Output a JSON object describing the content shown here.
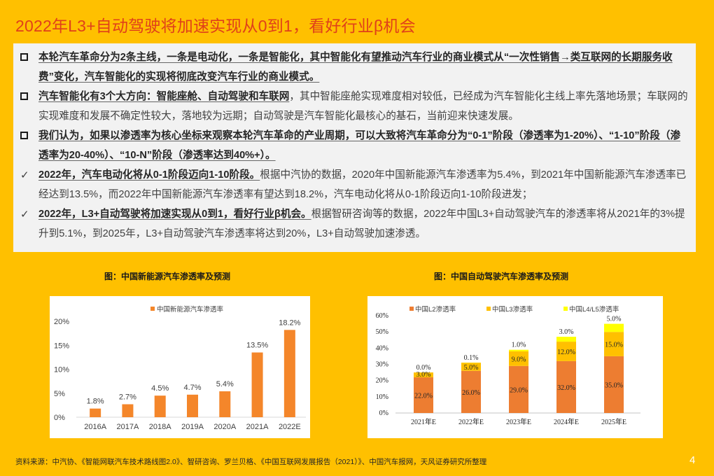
{
  "page": {
    "title": "2022年L3+自动驾驶将加速实现从0到1，看好行业β机会",
    "page_number": "4",
    "footer_source": "资料来源：中汽协、《智能网联汽车技术路线图2.0》、智研咨询、罗兰贝格、《中国互联网发展报告（2021）》、中国汽车报网，天风证券研究所整理"
  },
  "colors": {
    "background": "#FFC000",
    "title": "#E0401A",
    "textbox_bg": "#F2F2F2",
    "bar_orange": "#F4862A",
    "l2": "#ED7D31",
    "l3": "#FFC000",
    "l45": "#FFFF00"
  },
  "bullets": [
    {
      "type": "square",
      "bold": "本轮汽车革命分为2条主线，一条是电动化，一条是智能化，其中智能化有望推动汽车行业的商业模式从“一次性销售→类互联网的长期服务收费”变化，汽车智能化的实现将彻底改变汽车行业的商业模式。",
      "normal": ""
    },
    {
      "type": "square",
      "bold": "汽车智能化有3个大方向：智能座舱、自动驾驶和车联网",
      "normal": "，其中智能座舱实现难度相对较低，已经成为汽车智能化主线上率先落地场景；车联网的实现难度和发展不确定性较大，落地较为远期；自动驾驶是汽车智能化最核心的基石，当前迎来快速发展。"
    },
    {
      "type": "square",
      "bold": "我们认为，如果以渗透率为核心坐标来观察本轮汽车革命的产业周期，可以大致将汽车革命分为“0-1”阶段（渗透率为1-20%）、“1-10”阶段（渗透率为20-40%）、“10-N”阶段（渗透率达到40%+）。",
      "normal": ""
    },
    {
      "type": "check",
      "bold": "2022年，汽车电动化将从0-1阶段迈向1-10阶段。",
      "normal": "根据中汽协的数据，2020年中国新能源汽车渗透率为5.4%，到2021年中国新能源汽车渗透率已经达到13.5%，而2022年中国新能源汽车渗透率有望达到18.2%，汽车电动化将从0-1阶段迈向1-10阶段进发；"
    },
    {
      "type": "check",
      "bold": "2022年，L3+自动驾驶将加速实现从0到1，看好行业β机会。",
      "normal": "根据智研咨询等的数据，2022年中国L3+自动驾驶汽车的渗透率将从2021年的3%提升到5.1%，到2025年，L3+自动驾驶汽车渗透率将达到20%，L3+自动驾驶加速渗透。"
    }
  ],
  "chart_data": [
    {
      "type": "bar",
      "caption": "图：中国新能源汽车渗透率及预测",
      "title": "",
      "legend": [
        "中国新能源汽车渗透率"
      ],
      "categories": [
        "2016A",
        "2017A",
        "2018A",
        "2019A",
        "2020A",
        "2021A",
        "2022E"
      ],
      "values": [
        1.8,
        2.7,
        4.5,
        4.7,
        5.4,
        13.5,
        18.2
      ],
      "labels": [
        "1.8%",
        "2.7%",
        "4.5%",
        "4.7%",
        "5.4%",
        "13.5%",
        "18.2%"
      ],
      "yticks": [
        "0%",
        "5%",
        "10%",
        "15%",
        "20%"
      ],
      "ylim": [
        0,
        20
      ],
      "xlabel": "",
      "ylabel": "",
      "grid": false,
      "legend_position": "top"
    },
    {
      "type": "bar",
      "stacked": true,
      "caption": "图：中国自动驾驶汽车渗透率及预测",
      "title": "",
      "categories": [
        "2021年E",
        "2022年E",
        "2023年E",
        "2024年E",
        "2025年E"
      ],
      "series": [
        {
          "name": "中国L2渗透率",
          "values": [
            22.0,
            26.0,
            29.0,
            32.0,
            35.0
          ],
          "labels": [
            "22.0%",
            "26.0%",
            "29.0%",
            "32.0%",
            "35.0%"
          ]
        },
        {
          "name": "中国L3渗透率",
          "values": [
            3.0,
            5.0,
            9.0,
            12.0,
            15.0
          ],
          "labels": [
            "3.0%",
            "5.0%",
            "9.0%",
            "12.0%",
            "15.0%"
          ]
        },
        {
          "name": "中国L4/L5渗透率",
          "values": [
            0.0,
            0.1,
            1.0,
            3.0,
            5.0
          ],
          "labels": [
            "0.0%",
            "0.1%",
            "1.0%",
            "3.0%",
            "5.0%"
          ]
        }
      ],
      "yticks": [
        "0%",
        "10%",
        "20%",
        "30%",
        "40%",
        "50%",
        "60%"
      ],
      "ylim": [
        0,
        60
      ],
      "xlabel": "",
      "ylabel": "",
      "grid": false,
      "legend_position": "top"
    }
  ]
}
